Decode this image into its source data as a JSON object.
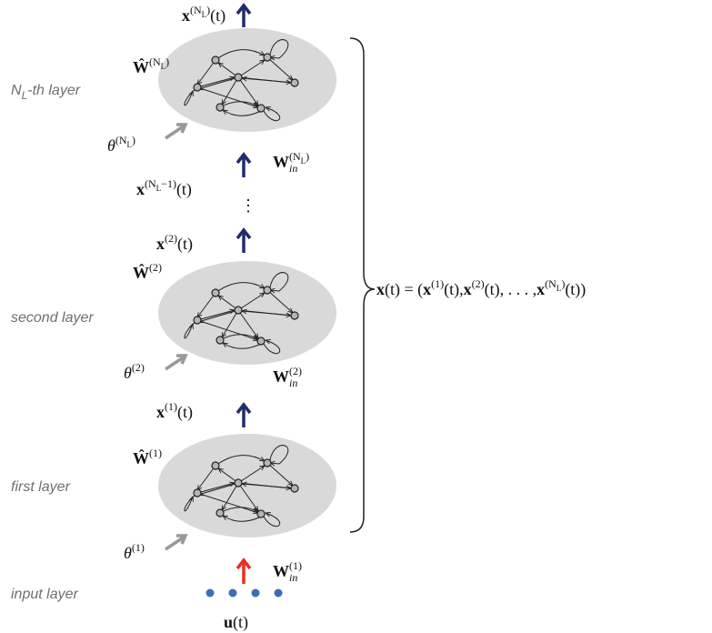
{
  "labels": {
    "top_output": [
      {
        "text": "x",
        "bold": true
      },
      {
        "text": "(N",
        "sup": true
      },
      {
        "text": "L",
        "supsub": true
      },
      {
        "text": ")",
        "sup": true
      },
      {
        "text": "(t)"
      }
    ],
    "w_hat_top": [
      {
        "text": "Ŵ",
        "bold": true
      },
      {
        "text": "(N",
        "sup": true
      },
      {
        "text": "L",
        "supsub": true
      },
      {
        "text": ")",
        "sup": true
      }
    ],
    "name_top": [
      {
        "text": "N"
      },
      {
        "text": "L",
        "sub": true
      },
      {
        "text": "-th layer"
      }
    ],
    "theta_top": [
      {
        "text": "θ",
        "italic": true
      },
      {
        "text": "(N",
        "sup": true
      },
      {
        "text": "L",
        "supsub": true
      },
      {
        "text": ")",
        "sup": true
      }
    ],
    "w_in_top": [
      {
        "text": "W",
        "bold": true
      },
      {
        "text": "(N",
        "sup": true
      },
      {
        "text": "L",
        "supsub": true
      },
      {
        "text": ")",
        "sup": true
      },
      {
        "text": "in",
        "sub": true,
        "stack": true,
        "italic": true
      }
    ],
    "state_prev": [
      {
        "text": "x",
        "bold": true
      },
      {
        "text": "(N",
        "sup": true
      },
      {
        "text": "L",
        "supsub": true
      },
      {
        "text": "−1)",
        "sup": true
      },
      {
        "text": "(t)"
      }
    ],
    "vdots": [
      {
        "text": "⋮"
      }
    ],
    "state_2": [
      {
        "text": "x",
        "bold": true
      },
      {
        "text": "(2)",
        "sup": true
      },
      {
        "text": "(t)"
      }
    ],
    "w_hat_2": [
      {
        "text": "Ŵ",
        "bold": true
      },
      {
        "text": "(2)",
        "sup": true
      }
    ],
    "name_2": [
      {
        "text": "second layer"
      }
    ],
    "theta_2": [
      {
        "text": "θ",
        "italic": true
      },
      {
        "text": "(2)",
        "sup": true
      }
    ],
    "w_in_2": [
      {
        "text": "W",
        "bold": true
      },
      {
        "text": "(2)",
        "sup": true
      },
      {
        "text": "in",
        "sub": true,
        "stack": true,
        "italic": true
      }
    ],
    "state_1": [
      {
        "text": "x",
        "bold": true
      },
      {
        "text": "(1)",
        "sup": true
      },
      {
        "text": "(t)"
      }
    ],
    "w_hat_1": [
      {
        "text": "Ŵ",
        "bold": true
      },
      {
        "text": "(1)",
        "sup": true
      }
    ],
    "name_1": [
      {
        "text": "first layer"
      }
    ],
    "theta_1": [
      {
        "text": "θ",
        "italic": true
      },
      {
        "text": "(1)",
        "sup": true
      }
    ],
    "w_in_1": [
      {
        "text": "W",
        "bold": true
      },
      {
        "text": "(1)",
        "sup": true
      },
      {
        "text": "in",
        "sub": true,
        "stack": true,
        "italic": true
      }
    ],
    "name_input": [
      {
        "text": "input layer"
      }
    ],
    "input": [
      {
        "text": "u",
        "bold": true
      },
      {
        "text": "(t)"
      }
    ],
    "equation": [
      {
        "text": "x",
        "bold": true
      },
      {
        "text": "(t) = ("
      },
      {
        "text": "x",
        "bold": true
      },
      {
        "text": "(1)",
        "sup": true
      },
      {
        "text": "(t), "
      },
      {
        "text": "x",
        "bold": true
      },
      {
        "text": "(2)",
        "sup": true
      },
      {
        "text": "(t), . . . , "
      },
      {
        "text": "x",
        "bold": true
      },
      {
        "text": "(N",
        "sup": true
      },
      {
        "text": "L",
        "supsub": true
      },
      {
        "text": ")",
        "sup": true
      },
      {
        "text": "(t))"
      }
    ]
  }
}
